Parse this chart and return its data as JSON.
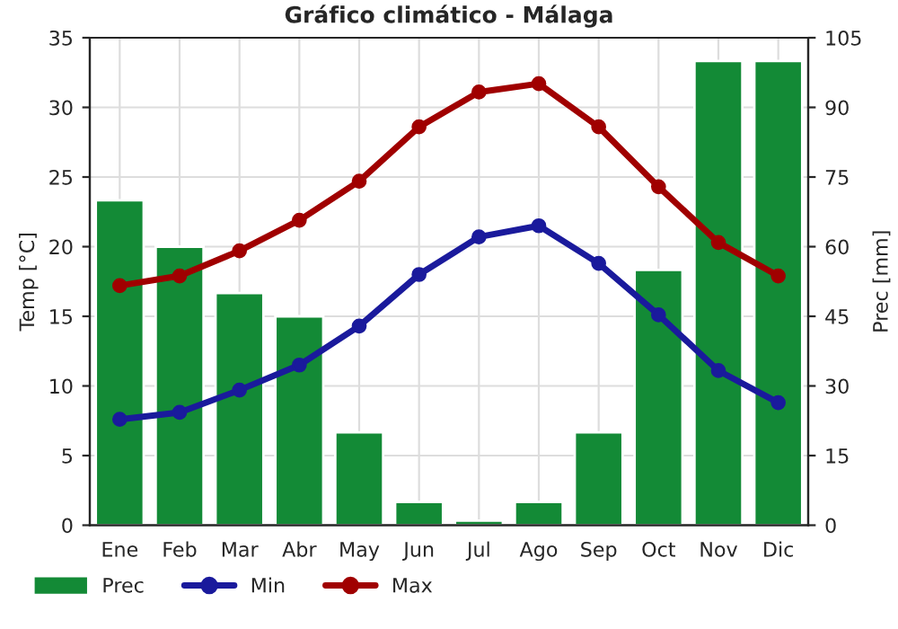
{
  "chart_data": {
    "type": "line",
    "title": "Gráfico climático - Málaga",
    "ylabel": "Temp [°C]",
    "y2label": "Prec [mm]",
    "categories": [
      "Ene",
      "Feb",
      "Mar",
      "Abr",
      "May",
      "Jun",
      "Jul",
      "Ago",
      "Sep",
      "Oct",
      "Nov",
      "Dic"
    ],
    "series": [
      {
        "name": "Prec",
        "type": "bar",
        "axis": "y2",
        "color": "#138a36",
        "values": [
          70,
          60,
          50,
          45,
          20,
          5,
          1,
          5,
          20,
          55,
          100,
          100
        ]
      },
      {
        "name": "Min",
        "color": "#1a1a9c",
        "values": [
          7.6,
          8.1,
          9.7,
          11.5,
          14.3,
          18.0,
          20.7,
          21.5,
          18.8,
          15.1,
          11.1,
          8.8
        ]
      },
      {
        "name": "Max",
        "color": "#a00000",
        "values": [
          17.2,
          17.9,
          19.7,
          21.9,
          24.7,
          28.6,
          31.1,
          31.7,
          28.6,
          24.3,
          20.3,
          17.9
        ]
      }
    ],
    "ylim": [
      0,
      35
    ],
    "yticks": [
      0,
      5,
      10,
      15,
      20,
      25,
      30,
      35
    ],
    "y2lim": [
      0,
      105
    ],
    "y2ticks": [
      0,
      15,
      30,
      45,
      60,
      75,
      90,
      105
    ],
    "grid": true,
    "legend": "bottom",
    "marker": "circle",
    "line_style": "solid"
  }
}
